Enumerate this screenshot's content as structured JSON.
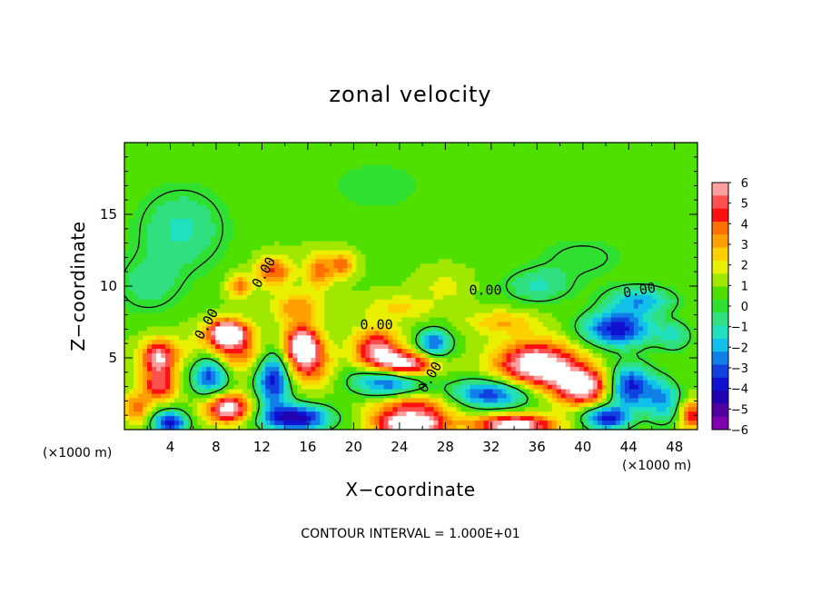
{
  "chart_data": {
    "type": "heatmap",
    "title": "zonal velocity",
    "xlabel": "X−coordinate",
    "ylabel": "Z−coordinate",
    "x_unit_label": "(×1000 m)",
    "footer": "CONTOUR INTERVAL = 1.000E+01",
    "xlim": [
      0,
      50
    ],
    "ylim": [
      0,
      20
    ],
    "x_ticks": [
      4,
      8,
      12,
      16,
      20,
      24,
      28,
      32,
      36,
      40,
      44,
      48
    ],
    "y_ticks": [
      5,
      10,
      15
    ],
    "colorbar": {
      "min": -6,
      "max": 6,
      "ticks": [
        "6",
        "5",
        "4",
        "3",
        "2",
        "1",
        "0",
        "−1",
        "−2",
        "−3",
        "−4",
        "−5",
        "−6"
      ],
      "colors": [
        "#ffa0a0",
        "#ff5050",
        "#ff1010",
        "#ff7000",
        "#ffa000",
        "#ffd000",
        "#e8f000",
        "#a0e800",
        "#50e000",
        "#30e030",
        "#30e080",
        "#20e0c0",
        "#10c0e8",
        "#1080e8",
        "#1040e0",
        "#1010d0",
        "#2000b0",
        "#5000a0",
        "#8000b0"
      ]
    },
    "contour_labels": [
      "0.00",
      "0.00",
      "0.00",
      "0.00",
      "0.00",
      "0.00"
    ],
    "features": [
      {
        "x": 5,
        "z": 14,
        "value": -2.0,
        "sx": 4.0,
        "sz": 3.0
      },
      {
        "x": 2,
        "z": 10,
        "value": -1.5,
        "sx": 3.0,
        "sz": 2.0
      },
      {
        "x": 22,
        "z": 17,
        "value": -0.8,
        "sx": 6.0,
        "sz": 2.5
      },
      {
        "x": 40,
        "z": 12,
        "value": -1.2,
        "sx": 4.0,
        "sz": 1.5
      },
      {
        "x": 13,
        "z": 11,
        "value": 3.5,
        "sx": 1.5,
        "sz": 1.0
      },
      {
        "x": 17,
        "z": 11,
        "value": 3.0,
        "sx": 1.2,
        "sz": 1.2
      },
      {
        "x": 19,
        "z": 11.5,
        "value": 3.2,
        "sx": 1.0,
        "sz": 0.8
      },
      {
        "x": 10,
        "z": 10,
        "value": 3.0,
        "sx": 1.0,
        "sz": 0.8
      },
      {
        "x": 15,
        "z": 8.5,
        "value": 2.5,
        "sx": 2.0,
        "sz": 1.0
      },
      {
        "x": 24,
        "z": 8.5,
        "value": 1.5,
        "sx": 3.0,
        "sz": 0.8
      },
      {
        "x": 28,
        "z": 10,
        "value": 1.0,
        "sx": 2.0,
        "sz": 1.0
      },
      {
        "x": 36,
        "z": 10,
        "value": -2.0,
        "sx": 3.0,
        "sz": 1.2
      },
      {
        "x": 45,
        "z": 9,
        "value": -3.0,
        "sx": 3.0,
        "sz": 1.0
      },
      {
        "x": 43,
        "z": 7,
        "value": -5.0,
        "sx": 3.0,
        "sz": 1.2
      },
      {
        "x": 9,
        "z": 6.8,
        "value": 6.5,
        "sx": 1.5,
        "sz": 0.8
      },
      {
        "x": 9,
        "z": 5.5,
        "value": 4.0,
        "sx": 3.0,
        "sz": 1.5
      },
      {
        "x": 7.5,
        "z": 4,
        "value": -5.0,
        "sx": 1.6,
        "sz": 1.6
      },
      {
        "x": 3,
        "z": 5,
        "value": 5.5,
        "sx": 1.5,
        "sz": 1.2
      },
      {
        "x": 3,
        "z": 3,
        "value": 4.0,
        "sx": 1.5,
        "sz": 1.0
      },
      {
        "x": 1,
        "z": 1.5,
        "value": 3.0,
        "sx": 1.2,
        "sz": 1.0
      },
      {
        "x": 15.5,
        "z": 6,
        "value": 6.0,
        "sx": 1.5,
        "sz": 1.3
      },
      {
        "x": 13,
        "z": 3.5,
        "value": -5.0,
        "sx": 1.5,
        "sz": 2.0
      },
      {
        "x": 16,
        "z": 4.5,
        "value": 3.5,
        "sx": 2.0,
        "sz": 1.5
      },
      {
        "x": 9,
        "z": 1.5,
        "value": 6.0,
        "sx": 2.0,
        "sz": 1.0
      },
      {
        "x": 4,
        "z": 0.5,
        "value": -5.0,
        "sx": 1.5,
        "sz": 0.8
      },
      {
        "x": 15,
        "z": 0.8,
        "value": -5.5,
        "sx": 3.0,
        "sz": 0.9
      },
      {
        "x": 22,
        "z": 5.5,
        "value": 5.0,
        "sx": 2.0,
        "sz": 1.5
      },
      {
        "x": 24.5,
        "z": 4.5,
        "value": 6.8,
        "sx": 2.5,
        "sz": 0.9
      },
      {
        "x": 23,
        "z": 3.5,
        "value": -5.0,
        "sx": 3.0,
        "sz": 1.2
      },
      {
        "x": 27,
        "z": 6,
        "value": -4.0,
        "sx": 1.5,
        "sz": 1.0
      },
      {
        "x": 25,
        "z": 1.5,
        "value": 4.0,
        "sx": 3.5,
        "sz": 1.0
      },
      {
        "x": 25,
        "z": 0.3,
        "value": 6.5,
        "sx": 3.0,
        "sz": 0.7
      },
      {
        "x": 36,
        "z": 4.5,
        "value": 6.5,
        "sx": 3.5,
        "sz": 1.6
      },
      {
        "x": 40,
        "z": 3,
        "value": 6.0,
        "sx": 2.5,
        "sz": 1.3
      },
      {
        "x": 32,
        "z": 2.5,
        "value": -4.5,
        "sx": 3.5,
        "sz": 1.0
      },
      {
        "x": 34,
        "z": 0.3,
        "value": 6.5,
        "sx": 3.5,
        "sz": 0.7
      },
      {
        "x": 44,
        "z": 3,
        "value": -5.0,
        "sx": 2.0,
        "sz": 1.5
      },
      {
        "x": 47,
        "z": 2,
        "value": -3.0,
        "sx": 1.5,
        "sz": 1.5
      },
      {
        "x": 49.5,
        "z": 1,
        "value": 4.0,
        "sx": 1.0,
        "sz": 1.0
      },
      {
        "x": 42,
        "z": 0.8,
        "value": -5.0,
        "sx": 2.0,
        "sz": 0.8
      },
      {
        "x": 48,
        "z": 6.5,
        "value": -2.0,
        "sx": 1.5,
        "sz": 1.0
      },
      {
        "x": 33,
        "z": 7.5,
        "value": 2.0,
        "sx": 3.0,
        "sz": 0.8
      }
    ]
  }
}
